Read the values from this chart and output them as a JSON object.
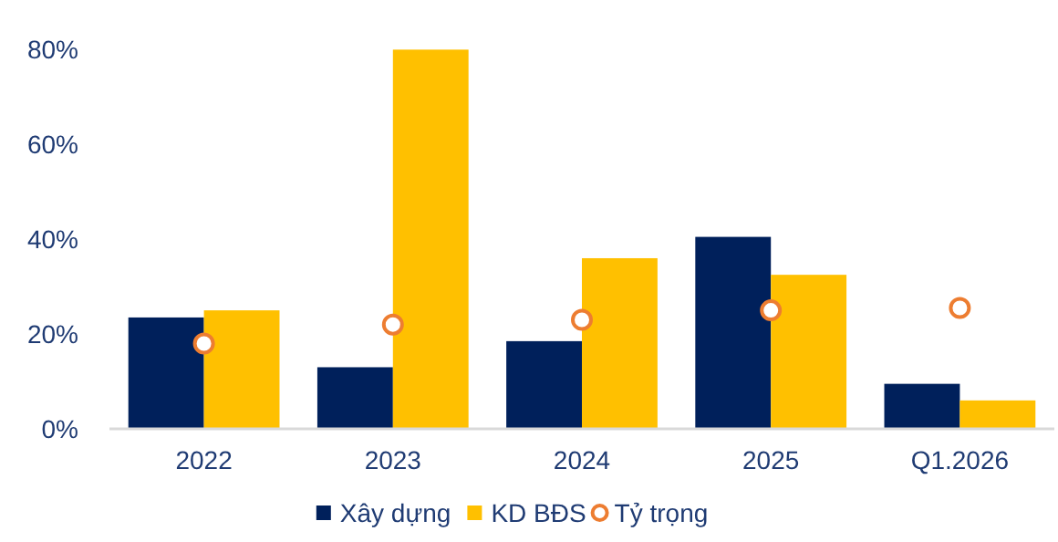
{
  "chart_data": {
    "type": "bar",
    "categories": [
      "2022",
      "2023",
      "2024",
      "2025",
      "Q1.2026"
    ],
    "series": [
      {
        "name": "Xây dựng",
        "color": "#00205b",
        "values": [
          23.5,
          13,
          18.5,
          40.5,
          9.5
        ]
      },
      {
        "name": "KD BĐS",
        "color": "#ffc000",
        "values": [
          25,
          80,
          36,
          32.5,
          6
        ]
      },
      {
        "name": "Tỷ trọng",
        "type": "scatter",
        "color": "#ed7d31",
        "marker": "circle",
        "values": [
          18,
          22,
          23,
          25,
          25.5
        ]
      }
    ],
    "ylim": [
      0,
      82
    ],
    "yticks": [
      {
        "value": 0,
        "label": "0%"
      },
      {
        "value": 20,
        "label": "20%"
      },
      {
        "value": 40,
        "label": "40%"
      },
      {
        "value": 60,
        "label": "60%"
      },
      {
        "value": 80,
        "label": "80%"
      }
    ],
    "grid": false,
    "legend": "bottom"
  }
}
